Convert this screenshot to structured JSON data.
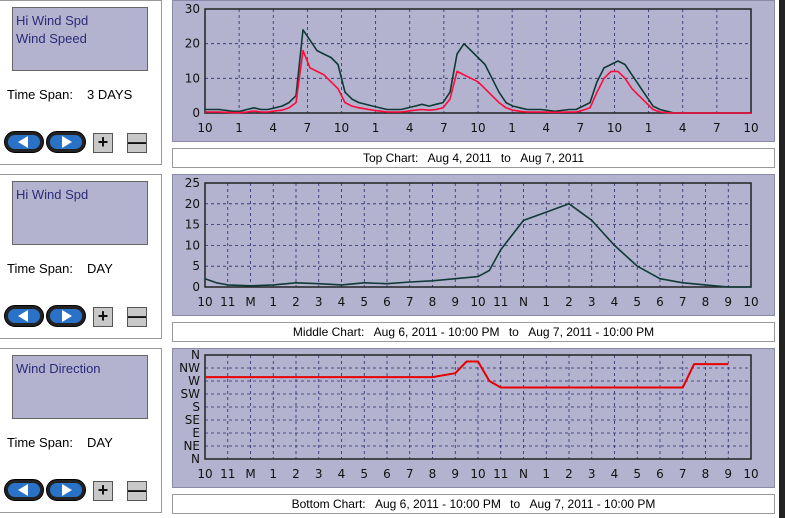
{
  "panels": [
    {
      "series": [
        "Hi Wind Spd",
        "Wind Speed"
      ],
      "time_span_label": "Time Span:",
      "time_span_value": "3 DAYS"
    },
    {
      "series": [
        "Hi Wind Spd"
      ],
      "time_span_label": "Time Span:",
      "time_span_value": "DAY"
    },
    {
      "series": [
        "Wind Direction"
      ],
      "time_span_label": "Time Span:",
      "time_span_value": "DAY"
    }
  ],
  "buttons": {
    "plus": "+",
    "minus": "—"
  },
  "colors": {
    "plot_bg": "#b4b3cf",
    "hi_wind": "#0f3a36",
    "wind_speed": "#ff0a3c",
    "direction": "#e60000",
    "grid": "#2a2a70",
    "nav_button": "#2a72c8"
  },
  "icons": {
    "prev": "left-arrow-icon",
    "next": "right-arrow-icon"
  },
  "captions": [
    {
      "label": "Top Chart:",
      "from": "Aug 4, 2011",
      "to_word": "to",
      "to": "Aug 7, 2011"
    },
    {
      "label": "Middle Chart:",
      "from": "Aug 6, 2011 - 10:00 PM",
      "to_word": "to",
      "to": "Aug 7, 2011 - 10:00 PM"
    },
    {
      "label": "Bottom Chart:",
      "from": "Aug 6, 2011 - 10:00 PM",
      "to_word": "to",
      "to": "Aug 7, 2011 - 10:00 PM"
    }
  ],
  "chart_data": [
    {
      "type": "line",
      "ylim": [
        0,
        30
      ],
      "yticks": [
        0,
        10,
        20,
        30
      ],
      "x_tick_labels": [
        "10",
        "1",
        "4",
        "7",
        "10",
        "1",
        "4",
        "7",
        "10",
        "1",
        "4",
        "7",
        "10",
        "1",
        "4",
        "7",
        "10"
      ],
      "x_hours": [
        0,
        78
      ],
      "grid": true,
      "series": [
        {
          "color": "#0f3a36",
          "x": [
            0,
            2,
            4,
            5,
            6,
            7,
            8,
            9,
            10,
            11,
            12,
            13,
            14,
            15,
            16,
            17,
            18,
            19,
            20,
            21,
            22,
            24,
            26,
            28,
            30,
            31,
            32,
            33,
            34,
            35,
            36,
            37,
            38,
            39,
            40,
            41,
            42,
            43,
            44,
            45,
            46,
            48,
            50,
            52,
            53,
            54,
            55,
            56,
            57,
            58,
            59,
            60,
            61,
            62,
            63,
            64,
            65,
            66,
            67,
            68,
            69,
            70,
            71,
            72,
            73,
            74,
            75,
            76,
            77,
            78
          ],
          "y": [
            1,
            1,
            0.5,
            0.5,
            1,
            1.5,
            1,
            1,
            1.5,
            2,
            3,
            5,
            24,
            21,
            18,
            17,
            16,
            14,
            6,
            4,
            3,
            2,
            1,
            1,
            2,
            2.5,
            2,
            2.5,
            3,
            6,
            17,
            20,
            18,
            16,
            14,
            10,
            6,
            3,
            2,
            1.5,
            1,
            1,
            0.5,
            1,
            1,
            2,
            3,
            9,
            13,
            14,
            15,
            14,
            11,
            8,
            5,
            2,
            1,
            0.5,
            0,
            0,
            0,
            0,
            0,
            0,
            0,
            0,
            0,
            0,
            0,
            0
          ]
        },
        {
          "color": "#ff0a3c",
          "x": [
            0,
            2,
            4,
            5,
            6,
            7,
            8,
            9,
            10,
            11,
            12,
            13,
            14,
            15,
            16,
            17,
            18,
            19,
            20,
            21,
            22,
            24,
            26,
            28,
            30,
            31,
            32,
            33,
            34,
            35,
            36,
            37,
            38,
            39,
            40,
            41,
            42,
            43,
            44,
            45,
            46,
            48,
            50,
            52,
            53,
            54,
            55,
            56,
            57,
            58,
            59,
            60,
            61,
            62,
            63,
            64,
            65,
            66,
            67,
            68,
            69,
            70,
            71,
            72,
            73,
            74,
            75,
            76,
            77,
            78
          ],
          "y": [
            0.3,
            0.3,
            0.1,
            0.1,
            0.3,
            0.6,
            0.3,
            0.3,
            0.6,
            0.8,
            1.5,
            3,
            18,
            13,
            12,
            11,
            9,
            7,
            3,
            2,
            1.5,
            0.8,
            0.3,
            0.3,
            0.8,
            1,
            0.8,
            1,
            1.5,
            4,
            12,
            11,
            10,
            9,
            7,
            5,
            3,
            1.5,
            0.8,
            0.5,
            0.3,
            0.3,
            0.2,
            0.3,
            0.3,
            0.8,
            1.5,
            6,
            10,
            12,
            12,
            10,
            7,
            5,
            3,
            1,
            0.3,
            0.1,
            0,
            0,
            0,
            0,
            0,
            0,
            0,
            0,
            0,
            0,
            0,
            0
          ]
        }
      ]
    },
    {
      "type": "line",
      "ylim": [
        0,
        25
      ],
      "yticks": [
        0,
        5,
        10,
        15,
        20,
        25
      ],
      "x_tick_labels": [
        "10",
        "11",
        "M",
        "1",
        "2",
        "3",
        "4",
        "5",
        "6",
        "7",
        "8",
        "9",
        "10",
        "11",
        "N",
        "1",
        "2",
        "3",
        "4",
        "5",
        "6",
        "7",
        "8",
        "9",
        "10"
      ],
      "x_hours": [
        0,
        24
      ],
      "grid": true,
      "series": [
        {
          "color": "#0f3a36",
          "x": [
            0,
            0.5,
            1,
            2,
            3,
            4,
            5,
            6,
            7,
            8,
            9,
            10,
            11,
            12,
            12.5,
            13,
            14,
            15,
            16,
            17,
            17.5,
            18,
            19,
            20,
            21,
            22,
            23,
            24
          ],
          "y": [
            2,
            1,
            0.5,
            0.3,
            0.5,
            1,
            0.8,
            0.5,
            1,
            0.8,
            1.2,
            1.5,
            2,
            2.5,
            4,
            9,
            16,
            18,
            20,
            16,
            13,
            10,
            5,
            2,
            1,
            0.5,
            0,
            0
          ]
        }
      ]
    },
    {
      "type": "line",
      "ylim": [
        0,
        8
      ],
      "yticks": [
        0,
        1,
        2,
        3,
        4,
        5,
        6,
        7,
        8
      ],
      "ytick_labels": [
        "N",
        "NE",
        "E",
        "SE",
        "S",
        "SW",
        "W",
        "NW",
        "N"
      ],
      "x_tick_labels": [
        "10",
        "11",
        "M",
        "1",
        "2",
        "3",
        "4",
        "5",
        "6",
        "7",
        "8",
        "9",
        "10",
        "11",
        "N",
        "1",
        "2",
        "3",
        "4",
        "5",
        "6",
        "7",
        "8",
        "9",
        "10"
      ],
      "x_hours": [
        0,
        24
      ],
      "grid": true,
      "series": [
        {
          "color": "#e60000",
          "x": [
            0,
            1,
            2,
            3,
            4,
            5,
            6,
            7,
            8,
            9,
            10,
            11,
            11.5,
            12,
            12.5,
            13,
            14,
            15,
            16,
            17,
            18,
            19,
            20,
            21,
            21.5,
            22,
            23
          ],
          "y": [
            6.3,
            6.3,
            6.3,
            6.3,
            6.3,
            6.3,
            6.3,
            6.3,
            6.3,
            6.3,
            6.3,
            6.6,
            7.5,
            7.5,
            6,
            5.5,
            5.5,
            5.5,
            5.5,
            5.5,
            5.5,
            5.5,
            5.5,
            5.5,
            7.3,
            7.3,
            7.3
          ]
        }
      ]
    }
  ]
}
